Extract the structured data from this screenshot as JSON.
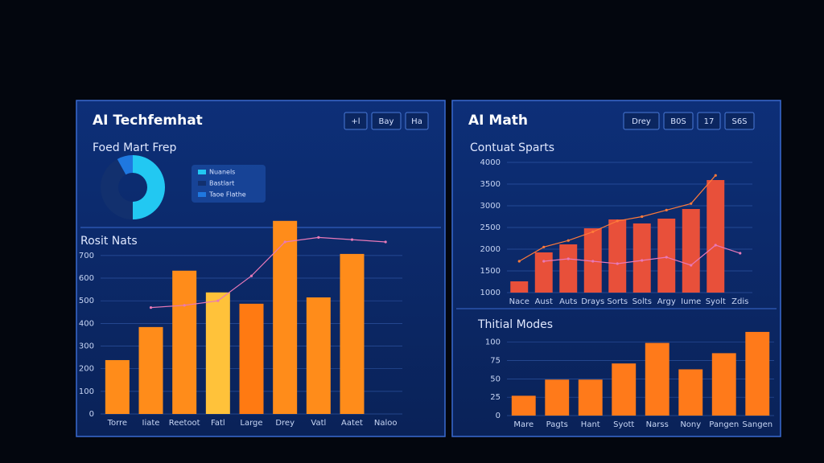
{
  "panels": [
    {
      "title": "AI Techfemhat",
      "buttons": [
        "+l",
        "Bay",
        "Ha"
      ]
    },
    {
      "title": "AI Math",
      "buttons": [
        "Drey",
        "B0S",
        "17",
        "S6S"
      ]
    }
  ],
  "chart_data": [
    {
      "type": "pie",
      "title": "Foed Mart Frep",
      "categories": [
        "Nuanels",
        "Bastlart",
        "Taoe Flathe"
      ],
      "values": [
        50,
        42,
        8
      ],
      "colors": [
        "#22c8f2",
        "#12306e",
        "#1f78e0"
      ]
    },
    {
      "type": "bar",
      "title": "Rosit Nats",
      "categories": [
        "Torre",
        "Iiate",
        "Reetoot",
        "Fatl",
        "Large",
        "Drey",
        "Vatl",
        "Aatet",
        "Naloo"
      ],
      "ylim": [
        0,
        870
      ],
      "yticks": [
        0,
        100,
        200,
        300,
        400,
        500,
        600,
        700
      ],
      "grid": true,
      "series": [
        {
          "type": "bar",
          "colors": [
            "#ff8c1a",
            "#ff8c1a",
            "#ff8c1a",
            "#ffc23a",
            "#ff7a12",
            "#ff8c1a",
            "#ff8c1a",
            "#ff8c1a",
            "#ff8c1a"
          ],
          "values": [
            238,
            384,
            633,
            537,
            487,
            853,
            515,
            707,
            null
          ]
        },
        {
          "type": "line",
          "color": "#e879b8",
          "values": [
            null,
            470,
            480,
            500,
            610,
            760,
            780,
            770,
            760
          ]
        }
      ]
    },
    {
      "type": "bar",
      "title": "Contuat Sparts",
      "categories": [
        "Nace",
        "Aust",
        "Auts",
        "Drays",
        "Sorts",
        "Solts",
        "Argy",
        "Iume",
        "Syolt",
        "Zdis"
      ],
      "ylim": [
        1000,
        4000
      ],
      "yticks": [
        1000,
        1500,
        2000,
        2500,
        3000,
        3500,
        4000
      ],
      "grid": true,
      "series": [
        {
          "type": "bar",
          "color": "#e8503a",
          "values": [
            1259,
            1926,
            2111,
            2481,
            2685,
            2593,
            2704,
            2926,
            3593,
            null
          ]
        },
        {
          "type": "line",
          "color": "#ff7a3a",
          "values": [
            1722,
            2050,
            2200,
            2400,
            2650,
            2750,
            2900,
            3050,
            3700,
            null
          ]
        },
        {
          "type": "line",
          "color": "#e879b8",
          "values": [
            null,
            1722,
            1778,
            1722,
            1667,
            1741,
            1815,
            1630,
            2093,
            1907
          ]
        }
      ]
    },
    {
      "type": "bar",
      "title": "Thitial Modes",
      "categories": [
        "Mare",
        "Pagts",
        "Hant",
        "Syott",
        "Narss",
        "Nony",
        "Pangen",
        "Sangen"
      ],
      "ylim": [
        0,
        115
      ],
      "yticks": [
        0,
        25,
        50,
        75,
        100
      ],
      "grid": true,
      "series": [
        {
          "type": "bar",
          "color": "#ff7a1a",
          "values": [
            27,
            49,
            49,
            71,
            99,
            63,
            85,
            114
          ]
        }
      ]
    }
  ]
}
